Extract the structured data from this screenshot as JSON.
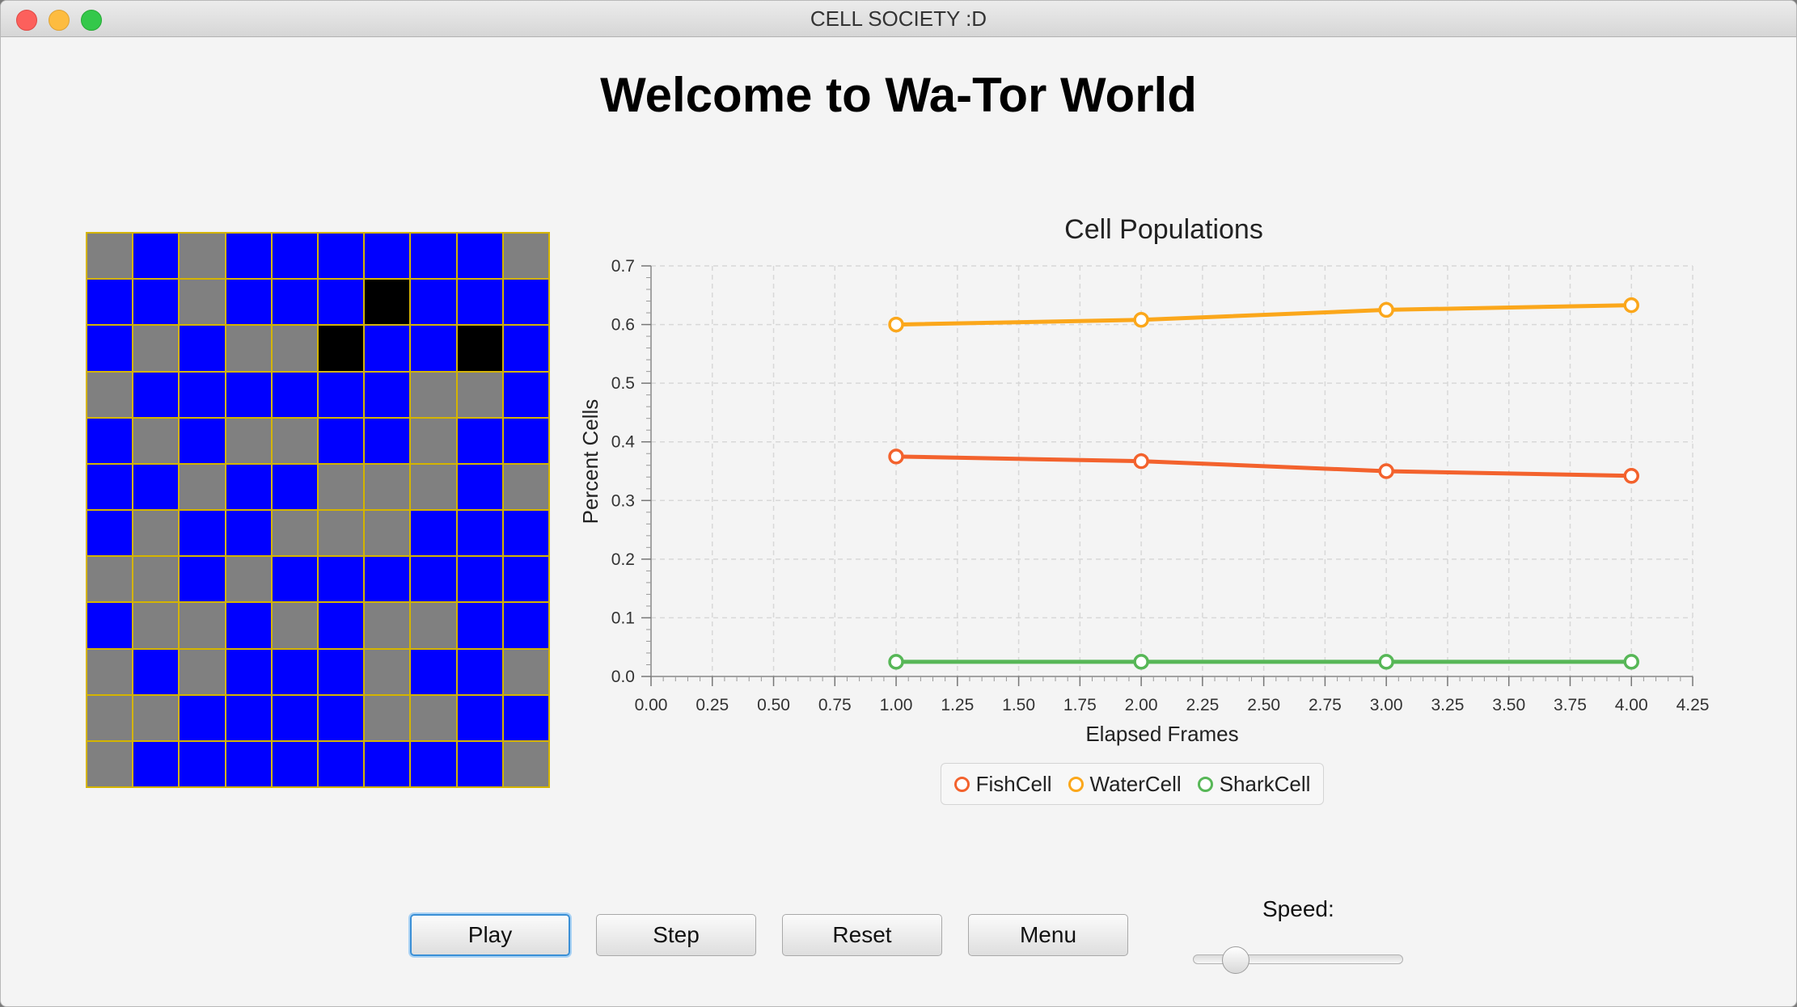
{
  "window": {
    "title": "CELL SOCIETY :D"
  },
  "heading": "Welcome to Wa-Tor World",
  "simulation": {
    "colors": {
      "fish": "#0000ff",
      "water": "#808080",
      "shark": "#000000",
      "gridline": "#d4b400"
    },
    "rows": [
      "WFWFFFFFFW",
      "FFWFFFSFFF",
      "FWFWWSFFSF",
      "WFFFFFFWWF",
      "FWFWWFFWFF",
      "FFWFFWWWFW",
      "FWFFWWWFFF",
      "WWFWFFFFFF",
      "FWWFWFWWFF",
      "WFWFFFWFFW",
      "WWFFFFWWFF",
      "WFFFFFFFFW"
    ]
  },
  "chart_data": {
    "type": "line",
    "title": "Cell Populations",
    "xlabel": "Elapsed Frames",
    "ylabel": "Percent Cells",
    "xlim": [
      0,
      4.25
    ],
    "ylim": [
      0,
      0.7
    ],
    "xticks": [
      "0.00",
      "0.25",
      "0.50",
      "0.75",
      "1.00",
      "1.25",
      "1.50",
      "1.75",
      "2.00",
      "2.25",
      "2.50",
      "2.75",
      "3.00",
      "3.25",
      "3.50",
      "3.75",
      "4.00",
      "4.25"
    ],
    "yticks": [
      "0.0",
      "0.1",
      "0.2",
      "0.3",
      "0.4",
      "0.5",
      "0.6",
      "0.7"
    ],
    "grid": true,
    "legend_position": "bottom",
    "x": [
      1,
      2,
      3,
      4
    ],
    "series": [
      {
        "name": "FishCell",
        "color": "#f3622d",
        "values": [
          0.375,
          0.367,
          0.35,
          0.342
        ]
      },
      {
        "name": "WaterCell",
        "color": "#fba71b",
        "values": [
          0.6,
          0.608,
          0.625,
          0.633
        ]
      },
      {
        "name": "SharkCell",
        "color": "#57b757",
        "values": [
          0.025,
          0.025,
          0.025,
          0.025
        ]
      }
    ]
  },
  "controls": {
    "play_label": "Play",
    "step_label": "Step",
    "reset_label": "Reset",
    "menu_label": "Menu",
    "speed_label": "Speed:",
    "speed_value": 0.2
  }
}
